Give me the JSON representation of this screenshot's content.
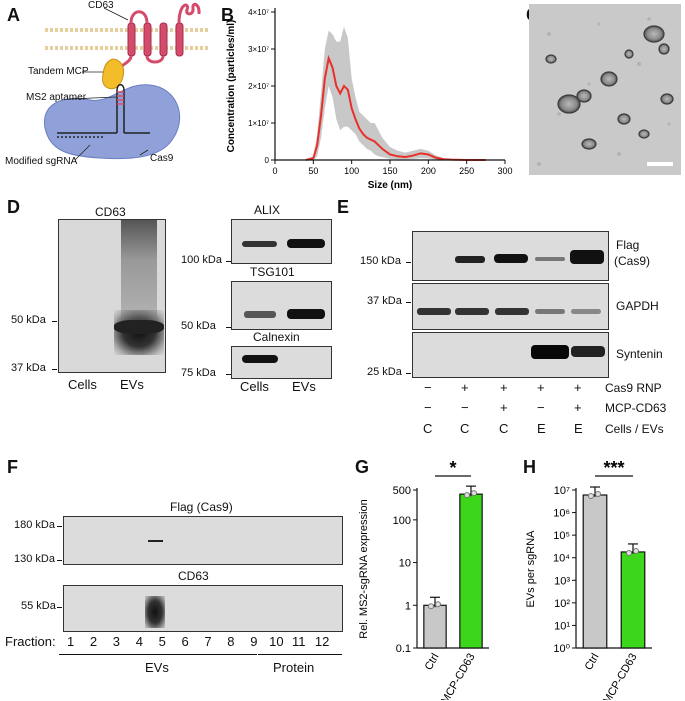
{
  "panels": {
    "A": "A",
    "B": "B",
    "C": "C",
    "D": "D",
    "E": "E",
    "F": "F",
    "G": "G",
    "H": "H"
  },
  "panel_a": {
    "cd63": "CD63",
    "tandem_mcp": "Tandem MCP",
    "ms2_aptamer": "MS2 aptamer",
    "cas9": "Cas9",
    "modified_sgrna": "Modified sgRNA"
  },
  "panel_d": {
    "cd63_title": "CD63",
    "cd63_mw": [
      "50 kDa",
      "37 kDa"
    ],
    "alix": "ALIX",
    "alix_mw": "100 kDa",
    "tsg101": "TSG101",
    "tsg101_mw": "50 kDa",
    "calnexin": "Calnexin",
    "calnexin_mw": "75 kDa",
    "lanes": [
      "Cells",
      "EVs"
    ]
  },
  "panel_e": {
    "mw": [
      "150 kDa",
      "37 kDa",
      "25 kDa"
    ],
    "flag": "Flag",
    "flag_sub": "(Cas9)",
    "gapdh": "GAPDH",
    "syntenin": "Syntenin",
    "rows": [
      {
        "label": "Cas9 RNP",
        "values": [
          "−",
          "+",
          "+",
          "+",
          "+"
        ]
      },
      {
        "label": "MCP-CD63",
        "values": [
          "−",
          "−",
          "+",
          "−",
          "+"
        ]
      },
      {
        "label": "Cells / EVs",
        "values": [
          "C",
          "C",
          "C",
          "E",
          "E"
        ]
      }
    ]
  },
  "panel_f": {
    "flag_title": "Flag (Cas9)",
    "flag_mw": [
      "180 kDa",
      "130 kDa"
    ],
    "cd63_title": "CD63",
    "cd63_mw": "55 kDa",
    "fraction_label": "Fraction:",
    "fractions": [
      "1",
      "2",
      "3",
      "4",
      "5",
      "6",
      "7",
      "8",
      "9",
      "10",
      "11",
      "12"
    ],
    "evs": "EVs",
    "protein": "Protein"
  },
  "chart_data": [
    {
      "panel": "B",
      "type": "line",
      "xlabel": "Size (nm)",
      "ylabel": "Concentration (particles/ml)",
      "xlim": [
        0,
        300
      ],
      "ylim": [
        0,
        40000000
      ],
      "x_ticks": [
        "0",
        "50",
        "100",
        "150",
        "200",
        "250",
        "300"
      ],
      "y_ticks": [
        "0",
        "1×10⁷",
        "2×10⁷",
        "3×10⁷",
        "4×10⁷"
      ],
      "series": [
        {
          "color": "#e8302a",
          "x": [
            40,
            50,
            55,
            60,
            65,
            70,
            75,
            80,
            85,
            90,
            95,
            100,
            105,
            110,
            115,
            120,
            125,
            130,
            135,
            140,
            150,
            160,
            170,
            180,
            190,
            200,
            210,
            220,
            230,
            250,
            275
          ],
          "y": [
            0,
            500000,
            4000000,
            12000000,
            22000000,
            27500000,
            25000000,
            20000000,
            18000000,
            20000000,
            19000000,
            14000000,
            11000000,
            8500000,
            7000000,
            6000000,
            5500000,
            5000000,
            4000000,
            3000000,
            1500000,
            1000000,
            800000,
            1200000,
            1800000,
            1500000,
            600000,
            200000,
            100000,
            0,
            0
          ],
          "band_upper": [
            0,
            1000000,
            7000000,
            18000000,
            30000000,
            35000000,
            34000000,
            32000000,
            32000000,
            36000000,
            33000000,
            22000000,
            17000000,
            13000000,
            12000000,
            11000000,
            10000000,
            10000000,
            8000000,
            6000000,
            3500000,
            2500000,
            2000000,
            2500000,
            3000000,
            2500000,
            1200000,
            500000,
            200000,
            0,
            0
          ],
          "band_lower": [
            0,
            0,
            1000000,
            6000000,
            14000000,
            20000000,
            17000000,
            11000000,
            8000000,
            9000000,
            9000000,
            8000000,
            7000000,
            5000000,
            4000000,
            3000000,
            2500000,
            1500000,
            1000000,
            800000,
            300000,
            200000,
            200000,
            300000,
            500000,
            400000,
            100000,
            0,
            0,
            0,
            0
          ]
        }
      ]
    },
    {
      "panel": "G",
      "type": "bar",
      "ylabel": "Rel. MS2-sgRNA expression",
      "categories": [
        "Ctrl",
        "MCP-CD63"
      ],
      "values": [
        1,
        400
      ],
      "colors": [
        "#c8c8c8",
        "#3cd61a"
      ],
      "y_scale": "log",
      "ylim": [
        0.1,
        500
      ],
      "y_ticks": [
        "0.1",
        "1",
        "10",
        "100",
        "500"
      ],
      "significance": "*"
    },
    {
      "panel": "H",
      "type": "bar",
      "ylabel": "EVs per sgRNA",
      "categories": [
        "Ctrl",
        "MCP-CD63"
      ],
      "values": [
        6000000,
        18000
      ],
      "colors": [
        "#c8c8c8",
        "#3cd61a"
      ],
      "y_scale": "log",
      "ylim": [
        1,
        10000000
      ],
      "y_ticks": [
        "10⁰",
        "10¹",
        "10²",
        "10³",
        "10⁴",
        "10⁵",
        "10⁶",
        "10⁷"
      ],
      "significance": "***"
    }
  ]
}
